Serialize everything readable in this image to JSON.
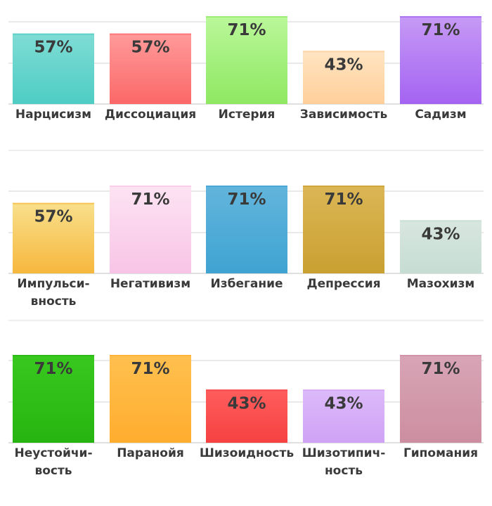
{
  "chart_data": [
    {
      "type": "bar",
      "categories": [
        [
          "Нарцисизм"
        ],
        [
          "Диссоциация"
        ],
        [
          "Истерия"
        ],
        [
          "Зависимость"
        ],
        [
          "Садизм"
        ]
      ],
      "values": [
        57,
        57,
        71,
        43,
        71
      ],
      "value_labels": [
        "57%",
        "57%",
        "71%",
        "43%",
        "71%"
      ],
      "colors": [
        [
          "#7fdcd5",
          "#4ecdc4"
        ],
        [
          "#ff9a9a",
          "#fb6868"
        ],
        [
          "#baf79a",
          "#8ee862"
        ],
        [
          "#ffe4c2",
          "#ffcf9a"
        ],
        [
          "#c69af5",
          "#a463f2"
        ]
      ],
      "ylim": [
        0,
        71
      ],
      "grid": true
    },
    {
      "type": "bar",
      "categories": [
        [
          "Импульси-",
          "вность"
        ],
        [
          "Негативизм"
        ],
        [
          "Избегание"
        ],
        [
          "Депрессия"
        ],
        [
          "Мазохизм"
        ]
      ],
      "values": [
        57,
        71,
        71,
        71,
        43
      ],
      "value_labels": [
        "57%",
        "71%",
        "71%",
        "71%",
        "43%"
      ],
      "colors": [
        [
          "#f8e08c",
          "#f7b73d"
        ],
        [
          "#fde3f3",
          "#f8c4e6"
        ],
        [
          "#62b5dc",
          "#3fa3d2"
        ],
        [
          "#dbb655",
          "#c9a031"
        ],
        [
          "#d8e6df",
          "#c6ddd3"
        ]
      ],
      "ylim": [
        0,
        71
      ],
      "grid": true
    },
    {
      "type": "bar",
      "categories": [
        [
          "Неустойчи-",
          "вость"
        ],
        [
          "Паранойя"
        ],
        [
          "Шизоидность"
        ],
        [
          "Шизотипич-",
          "ность"
        ],
        [
          "Гипомания"
        ]
      ],
      "values": [
        71,
        71,
        43,
        43,
        71
      ],
      "value_labels": [
        "71%",
        "71%",
        "43%",
        "43%",
        "71%"
      ],
      "colors": [
        [
          "#38c81e",
          "#27b411"
        ],
        [
          "#ffc04f",
          "#ffad2e"
        ],
        [
          "#ff5d5d",
          "#f64141"
        ],
        [
          "#dcbaf9",
          "#cfa2f6"
        ],
        [
          "#d8a5b6",
          "#cc8ea0"
        ]
      ],
      "ylim": [
        0,
        71
      ],
      "grid": true
    }
  ]
}
